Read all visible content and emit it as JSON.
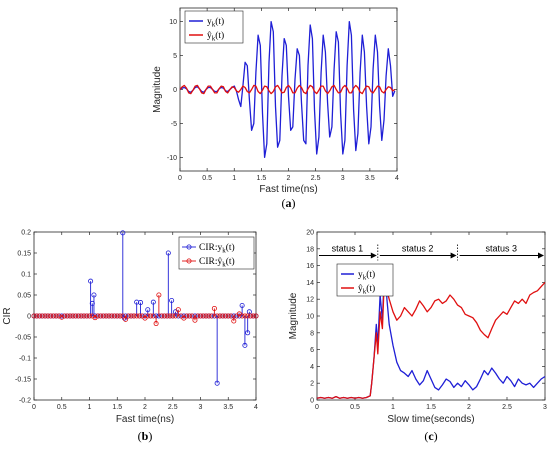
{
  "chart_data": [
    {
      "id": "a",
      "type": "line",
      "caption": "(a)",
      "xlabel": "Fast time(ns)",
      "ylabel": "Magnitude",
      "xlim": [
        0,
        4
      ],
      "ylim": [
        -12,
        12
      ],
      "xticks": [
        0,
        0.5,
        1,
        1.5,
        2,
        2.5,
        3,
        3.5,
        4
      ],
      "xtick_labels": [
        "0",
        "0.5",
        "1",
        "1.5",
        "2",
        "2.5",
        "3",
        "3.5",
        "4"
      ],
      "yticks": [
        -10,
        -5,
        0,
        5,
        10
      ],
      "ytick_labels": [
        "-10",
        "-5",
        "0",
        "5",
        "10"
      ],
      "legend_position": "top-left",
      "grid": false,
      "series": [
        {
          "name": "y_k(t)",
          "legend_label": "yk(t)",
          "color": "#1f1fd6",
          "x": [
            0,
            0.04,
            0.08,
            0.12,
            0.16,
            0.2,
            0.24,
            0.28,
            0.32,
            0.36,
            0.4,
            0.44,
            0.48,
            0.52,
            0.56,
            0.6,
            0.64,
            0.68,
            0.72,
            0.76,
            0.8,
            0.84,
            0.88,
            0.92,
            0.96,
            1.0,
            1.04,
            1.08,
            1.12,
            1.16,
            1.2,
            1.24,
            1.28,
            1.32,
            1.36,
            1.4,
            1.44,
            1.48,
            1.52,
            1.56,
            1.6,
            1.64,
            1.68,
            1.72,
            1.76,
            1.8,
            1.84,
            1.88,
            1.92,
            1.96,
            2.0,
            2.04,
            2.08,
            2.12,
            2.16,
            2.2,
            2.24,
            2.28,
            2.32,
            2.36,
            2.4,
            2.44,
            2.48,
            2.52,
            2.56,
            2.6,
            2.64,
            2.68,
            2.72,
            2.76,
            2.8,
            2.84,
            2.88,
            2.92,
            2.96,
            3.0,
            3.04,
            3.08,
            3.12,
            3.16,
            3.2,
            3.24,
            3.28,
            3.32,
            3.36,
            3.4,
            3.44,
            3.48,
            3.52,
            3.56,
            3.6,
            3.64,
            3.68,
            3.72,
            3.76,
            3.8,
            3.84,
            3.88,
            3.92,
            3.96
          ],
          "y": [
            0,
            0.2,
            0.3,
            0.1,
            -0.3,
            -0.4,
            -0.1,
            0.3,
            0.4,
            0.1,
            -0.3,
            -0.4,
            0,
            0.3,
            0.3,
            0,
            -0.3,
            -0.3,
            0.1,
            0.3,
            0.2,
            -0.2,
            -0.3,
            0,
            0.3,
            0.5,
            -0.2,
            -1.5,
            -2.5,
            0.5,
            4.0,
            3.5,
            -1.5,
            -6.0,
            -5.0,
            2.5,
            8.0,
            6.5,
            -3.5,
            -10.0,
            -8.0,
            4.0,
            10.0,
            8.5,
            -2.5,
            -8.5,
            -7.5,
            2.0,
            7.5,
            6.5,
            -1.0,
            -6.0,
            -5.5,
            1.5,
            6.0,
            5.0,
            -2.0,
            -7.5,
            -8.0,
            3.5,
            9.5,
            7.5,
            -3.0,
            -9.5,
            -7.0,
            2.5,
            8.0,
            5.5,
            -2.0,
            -7.0,
            -5.5,
            3.0,
            8.5,
            7.0,
            -3.5,
            -9.5,
            -7.5,
            3.5,
            10.0,
            8.0,
            -3.0,
            -9.0,
            -6.5,
            2.5,
            8.0,
            5.5,
            -2.5,
            -8.0,
            -5.5,
            3.0,
            8.0,
            5.5,
            -2.5,
            -7.5,
            -4.5,
            2.0,
            6.0,
            3.5,
            -1.0,
            -0.2
          ]
        },
        {
          "name": "ŷ_k(t)",
          "legend_label": "ŷk(t)",
          "color": "#e01010",
          "x": [
            0,
            0.04,
            0.08,
            0.12,
            0.16,
            0.2,
            0.24,
            0.28,
            0.32,
            0.36,
            0.4,
            0.44,
            0.48,
            0.52,
            0.56,
            0.6,
            0.64,
            0.68,
            0.72,
            0.76,
            0.8,
            0.84,
            0.88,
            0.92,
            0.96,
            1.0,
            1.04,
            1.08,
            1.12,
            1.16,
            1.2,
            1.24,
            1.28,
            1.32,
            1.36,
            1.4,
            1.44,
            1.48,
            1.52,
            1.56,
            1.6,
            1.64,
            1.68,
            1.72,
            1.76,
            1.8,
            1.84,
            1.88,
            1.92,
            1.96,
            2.0,
            2.04,
            2.08,
            2.12,
            2.16,
            2.2,
            2.24,
            2.28,
            2.32,
            2.36,
            2.4,
            2.44,
            2.48,
            2.52,
            2.56,
            2.6,
            2.64,
            2.68,
            2.72,
            2.76,
            2.8,
            2.84,
            2.88,
            2.92,
            2.96,
            3.0,
            3.04,
            3.08,
            3.12,
            3.16,
            3.2,
            3.24,
            3.28,
            3.32,
            3.36,
            3.4,
            3.44,
            3.48,
            3.52,
            3.56,
            3.6,
            3.64,
            3.68,
            3.72,
            3.76,
            3.8,
            3.84,
            3.88,
            3.92,
            3.96
          ],
          "y": [
            0,
            0.4,
            0.6,
            0.2,
            -0.5,
            -0.6,
            -0.1,
            0.5,
            0.6,
            0.1,
            -0.5,
            -0.6,
            0,
            0.5,
            0.5,
            0,
            -0.5,
            -0.5,
            0.1,
            0.5,
            0.4,
            -0.3,
            -0.5,
            0,
            0.4,
            0.3,
            -0.2,
            -0.4,
            0,
            0.5,
            0.3,
            -0.3,
            -0.5,
            0,
            0.6,
            0.5,
            -0.3,
            -0.6,
            -0.1,
            0.5,
            0.4,
            -0.2,
            -0.6,
            -0.3,
            0.4,
            0.6,
            0.1,
            -0.5,
            -0.4,
            0.3,
            0.6,
            0.2,
            -0.5,
            -0.5,
            0.2,
            0.6,
            0.3,
            -0.4,
            -0.6,
            0.1,
            0.6,
            0.4,
            -0.3,
            -0.6,
            -0.1,
            0.5,
            0.5,
            -0.2,
            -0.6,
            -0.2,
            0.4,
            0.6,
            0,
            -0.5,
            -0.4,
            0.3,
            0.6,
            0.2,
            -0.5,
            -0.5,
            0.2,
            0.6,
            0.3,
            -0.4,
            -0.6,
            0,
            0.5,
            0.4,
            -0.3,
            -0.5,
            0,
            0.5,
            0.4,
            -0.3,
            -0.5,
            0,
            0.4,
            0.3,
            -0.2,
            0
          ]
        }
      ]
    },
    {
      "id": "b",
      "type": "stem",
      "caption": "(b)",
      "xlabel": "Fast time(ns)",
      "ylabel": "CIR",
      "xlim": [
        0,
        4
      ],
      "ylim": [
        -0.2,
        0.2
      ],
      "xticks": [
        0,
        0.5,
        1,
        1.5,
        2,
        2.5,
        3,
        3.5,
        4
      ],
      "xtick_labels": [
        "0",
        "0.5",
        "1",
        "1.5",
        "2",
        "2.5",
        "3",
        "3.5",
        "4"
      ],
      "yticks": [
        -0.2,
        -0.15,
        -0.1,
        -0.05,
        0,
        0.05,
        0.1,
        0.15,
        0.2
      ],
      "ytick_labels": [
        "-0.2",
        "-0.15",
        "-0.1",
        "-0.05",
        "0",
        "0.05",
        "0.1",
        "0.15",
        "0.2"
      ],
      "legend_position": "top-right",
      "grid": false,
      "stem_spacing_ns": 0.05,
      "series": [
        {
          "name": "CIR:y_k(t)",
          "legend_label": "CIR:yk(t)",
          "color": "#1f1fd6",
          "nonzero": [
            [
              1.02,
              0.083
            ],
            [
              1.05,
              0.03
            ],
            [
              1.08,
              0.05
            ],
            [
              1.6,
              0.198
            ],
            [
              1.63,
              -0.005
            ],
            [
              1.85,
              0.033
            ],
            [
              1.92,
              0.032
            ],
            [
              2.05,
              0.015
            ],
            [
              2.15,
              0.033
            ],
            [
              2.42,
              0.15
            ],
            [
              2.48,
              0.037
            ],
            [
              2.55,
              0.01
            ],
            [
              3.3,
              -0.16
            ],
            [
              3.75,
              0.025
            ],
            [
              3.8,
              -0.07
            ],
            [
              3.85,
              -0.04
            ],
            [
              3.88,
              0.01
            ]
          ]
        },
        {
          "name": "CIR:ŷ_k(t)",
          "legend_label": "CIR:ŷk(t)",
          "color": "#e01010",
          "nonzero": [
            [
              0.5,
              -0.003
            ],
            [
              1.1,
              -0.004
            ],
            [
              1.65,
              -0.008
            ],
            [
              2.0,
              -0.005
            ],
            [
              2.2,
              -0.018
            ],
            [
              2.25,
              0.05
            ],
            [
              2.6,
              0.015
            ],
            [
              2.7,
              -0.005
            ],
            [
              2.9,
              -0.01
            ],
            [
              3.25,
              0.018
            ],
            [
              3.6,
              -0.012
            ],
            [
              3.7,
              0.005
            ]
          ]
        }
      ]
    },
    {
      "id": "c",
      "type": "line",
      "caption": "(c)",
      "xlabel": "Slow time(seconds)",
      "ylabel": "Magnitude",
      "xlim": [
        0,
        3
      ],
      "ylim": [
        0,
        20
      ],
      "xticks": [
        0,
        0.5,
        1,
        1.5,
        2,
        2.5,
        3
      ],
      "xtick_labels": [
        "0",
        "0.5",
        "1",
        "1.5",
        "2",
        "2.5",
        "3"
      ],
      "yticks": [
        0,
        2,
        4,
        6,
        8,
        10,
        12,
        14,
        16,
        18,
        20
      ],
      "ytick_labels": [
        "0",
        "2",
        "4",
        "6",
        "8",
        "10",
        "12",
        "14",
        "16",
        "18",
        "20"
      ],
      "legend_position": "top-left",
      "grid": false,
      "status_boundaries": [
        0.8,
        1.85
      ],
      "status_arrow_y": 17.2,
      "status_labels": [
        "status 1",
        "status 2",
        "status 3"
      ],
      "series": [
        {
          "name": "y_k(t)",
          "legend_label": "yk(t)",
          "color": "#1f1fd6",
          "x": [
            0,
            0.05,
            0.1,
            0.15,
            0.2,
            0.25,
            0.3,
            0.35,
            0.4,
            0.45,
            0.5,
            0.55,
            0.6,
            0.65,
            0.7,
            0.72,
            0.75,
            0.78,
            0.8,
            0.83,
            0.86,
            0.88,
            0.9,
            0.92,
            0.95,
            1.0,
            1.05,
            1.1,
            1.15,
            1.2,
            1.25,
            1.3,
            1.35,
            1.4,
            1.45,
            1.5,
            1.55,
            1.6,
            1.65,
            1.7,
            1.75,
            1.8,
            1.85,
            1.9,
            1.95,
            2.0,
            2.05,
            2.1,
            2.15,
            2.2,
            2.25,
            2.3,
            2.35,
            2.4,
            2.45,
            2.5,
            2.55,
            2.6,
            2.65,
            2.7,
            2.75,
            2.8,
            2.85,
            2.9,
            2.95,
            3.0
          ],
          "y": [
            0.2,
            0.3,
            0.2,
            0.3,
            0.2,
            0.4,
            0.2,
            0.3,
            0.2,
            0.3,
            0.2,
            0.3,
            0.2,
            0.3,
            0.5,
            2.0,
            5.0,
            9.0,
            6.5,
            12.5,
            9.5,
            14.0,
            15.8,
            12.0,
            9.0,
            6.5,
            4.5,
            3.5,
            3.2,
            2.8,
            3.5,
            2.5,
            1.8,
            2.3,
            3.5,
            2.5,
            1.5,
            1.2,
            1.8,
            2.5,
            2.2,
            1.5,
            2.0,
            1.6,
            2.3,
            1.8,
            1.2,
            1.6,
            2.5,
            3.5,
            3.0,
            3.8,
            3.2,
            2.5,
            2.0,
            2.8,
            2.3,
            1.6,
            2.5,
            2.0,
            1.8,
            2.0,
            1.5,
            2.0,
            2.5,
            2.8
          ]
        },
        {
          "name": "ŷ_k(t)",
          "legend_label": "ŷk(t)",
          "color": "#e01010",
          "x": [
            0,
            0.05,
            0.1,
            0.15,
            0.2,
            0.25,
            0.3,
            0.35,
            0.4,
            0.45,
            0.5,
            0.55,
            0.6,
            0.65,
            0.7,
            0.72,
            0.75,
            0.78,
            0.8,
            0.83,
            0.86,
            0.88,
            0.9,
            0.92,
            0.95,
            1.0,
            1.05,
            1.1,
            1.15,
            1.2,
            1.25,
            1.3,
            1.35,
            1.4,
            1.45,
            1.5,
            1.55,
            1.6,
            1.65,
            1.7,
            1.75,
            1.8,
            1.85,
            1.9,
            1.95,
            2.0,
            2.05,
            2.1,
            2.15,
            2.2,
            2.25,
            2.3,
            2.35,
            2.4,
            2.45,
            2.5,
            2.55,
            2.6,
            2.65,
            2.7,
            2.75,
            2.8,
            2.85,
            2.9,
            2.95,
            3.0
          ],
          "y": [
            0.2,
            0.3,
            0.2,
            0.3,
            0.2,
            0.4,
            0.2,
            0.3,
            0.2,
            0.3,
            0.2,
            0.3,
            0.2,
            0.3,
            0.5,
            2.0,
            5.0,
            8.0,
            5.5,
            10.5,
            8.5,
            13.0,
            16.0,
            13.0,
            12.0,
            10.5,
            9.5,
            10.0,
            11.0,
            10.5,
            10.0,
            10.8,
            11.8,
            11.2,
            10.5,
            11.0,
            11.8,
            12.0,
            11.5,
            11.8,
            12.5,
            12.0,
            11.3,
            11.0,
            10.2,
            10.0,
            9.8,
            9.2,
            8.3,
            7.8,
            7.4,
            8.5,
            9.5,
            10.0,
            10.5,
            10.2,
            11.0,
            11.8,
            11.5,
            12.0,
            11.5,
            12.5,
            12.8,
            13.0,
            13.5,
            14.0
          ]
        }
      ]
    }
  ]
}
